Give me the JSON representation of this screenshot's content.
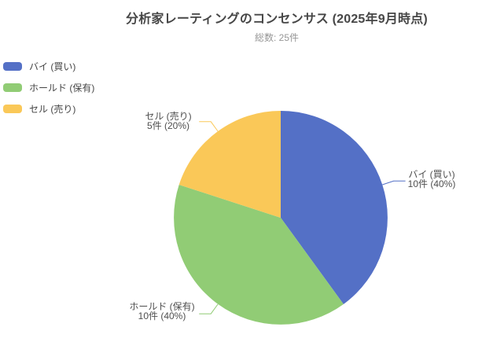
{
  "header": {
    "title": "分析家レーティングのコンセンサス (2025年9月時点)",
    "subtitle": "総数: 25件"
  },
  "chart_data": {
    "type": "pie",
    "title": "分析家レーティングのコンセンサス (2025年9月時点)",
    "subtitle": "総数: 25件",
    "total_count": 25,
    "unit": "件",
    "direction": "clockwise",
    "start_angle_deg": 0,
    "legend_position": "top-left",
    "slices": [
      {
        "id": "buy",
        "label": "バイ (買い)",
        "value": 10,
        "percent": 40,
        "color": "#5470C6",
        "callout_line2": "10件 (40%)"
      },
      {
        "id": "hold",
        "label": "ホールド (保有)",
        "value": 10,
        "percent": 40,
        "color": "#91CC75",
        "callout_line2": "10件 (40%)"
      },
      {
        "id": "sell",
        "label": "セル (売り)",
        "value": 5,
        "percent": 20,
        "color": "#FAC858",
        "callout_line2": "5件 (20%)"
      }
    ]
  },
  "colors": {
    "background": "#ffffff",
    "title_text": "#464646",
    "subtitle_text": "#969696",
    "callout_text": "#4e4e4e",
    "legend_text": "#454545"
  }
}
